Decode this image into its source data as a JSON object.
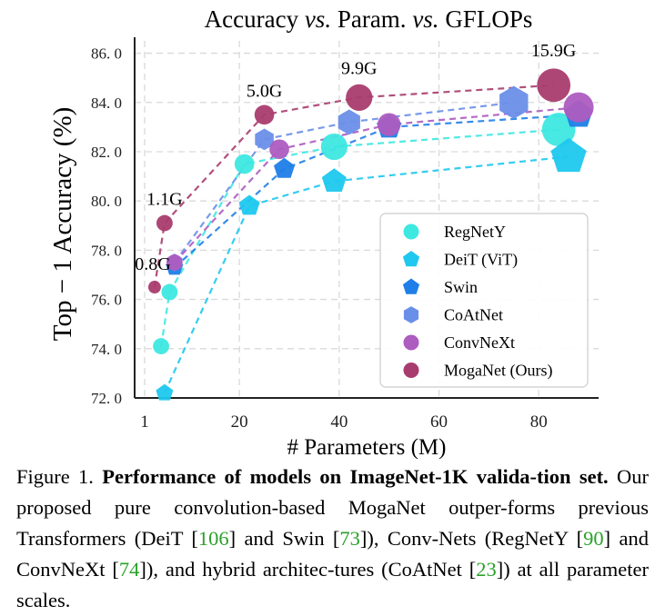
{
  "chart_data": {
    "type": "scatter",
    "title": "Accuracy vs. Param. vs. GFLOPs",
    "title_parts": [
      "Accuracy ",
      "vs.",
      " Param. ",
      "vs.",
      " GFLOPs"
    ],
    "xlabel": "# Parameters (M)",
    "ylabel": "Top − 1 Accuracy (%)",
    "xlim": [
      -1,
      92
    ],
    "ylim": [
      72,
      86.5
    ],
    "xticks": [
      1,
      20,
      40,
      60,
      80
    ],
    "yticks": [
      72,
      74,
      76,
      78,
      80,
      82,
      84,
      86
    ],
    "ytick_labels": [
      "72. 0",
      "74. 0",
      "76. 0",
      "78. 0",
      "80. 0",
      "82. 0",
      "84. 0",
      "86. 0"
    ],
    "grid": true,
    "legend_position": "lower-right",
    "series": [
      {
        "name": "RegNetY",
        "marker": "circle",
        "color": "#3de8e0",
        "x": [
          4.3,
          6,
          21,
          39,
          84
        ],
        "y": [
          74.1,
          76.3,
          81.5,
          82.2,
          82.9
        ],
        "size": [
          3,
          3,
          4,
          6,
          8
        ]
      },
      {
        "name": "DeiT (ViT)",
        "marker": "pentagon",
        "color": "#1ec8ee",
        "x": [
          5,
          22,
          39,
          86
        ],
        "y": [
          72.2,
          79.8,
          80.8,
          81.8
        ],
        "size": [
          3,
          4,
          5,
          8
        ]
      },
      {
        "name": "Swin",
        "marker": "pentagon",
        "color": "#1f7ee8",
        "x": [
          7,
          29,
          50,
          88
        ],
        "y": [
          77.3,
          81.3,
          83.0,
          83.5
        ],
        "size": [
          3,
          4,
          5,
          6
        ]
      },
      {
        "name": "CoAtNet",
        "marker": "hexagon",
        "color": "#6a8fe8",
        "x": [
          7,
          25,
          42,
          75
        ],
        "y": [
          77.5,
          82.5,
          83.2,
          84.0
        ],
        "size": [
          3,
          4,
          5,
          7
        ]
      },
      {
        "name": "ConvNeXt",
        "marker": "circle",
        "color": "#ad5cc0",
        "x": [
          7,
          28,
          50,
          88
        ],
        "y": [
          77.5,
          82.1,
          83.1,
          83.8
        ],
        "size": [
          3,
          4,
          5,
          7
        ]
      },
      {
        "name": "MogaNet (Ours)",
        "marker": "circle",
        "color": "#a93c6e",
        "x": [
          3,
          5,
          25,
          44,
          83
        ],
        "y": [
          76.5,
          79.1,
          83.5,
          84.2,
          84.7
        ],
        "size": [
          2,
          3,
          4,
          6,
          8
        ]
      }
    ],
    "annotations": [
      {
        "text": "0.8G",
        "x": 3,
        "y": 76.5
      },
      {
        "text": "1.1G",
        "x": 5,
        "y": 79.1
      },
      {
        "text": "5.0G",
        "x": 25,
        "y": 83.5
      },
      {
        "text": "9.9G",
        "x": 44,
        "y": 84.2
      },
      {
        "text": "15.9G",
        "x": 83,
        "y": 84.7
      }
    ]
  },
  "caption": {
    "label": "Figure 1.",
    "bold": "Performance of models on ImageNet-1K valida-tion set.",
    "text_1": " Our proposed pure convolution-based MogaNet outper-forms previous Transformers (DeiT [",
    "cite_1": "106",
    "text_2": "] and Swin [",
    "cite_2": "73",
    "text_3": "]), Conv-Nets (RegNetY [",
    "cite_3": "90",
    "text_4": "] and ConvNeXt [",
    "cite_4": "74",
    "text_5": "]), and hybrid architec-tures (CoAtNet [",
    "cite_5": "23",
    "text_6": "]) at all parameter scales."
  }
}
